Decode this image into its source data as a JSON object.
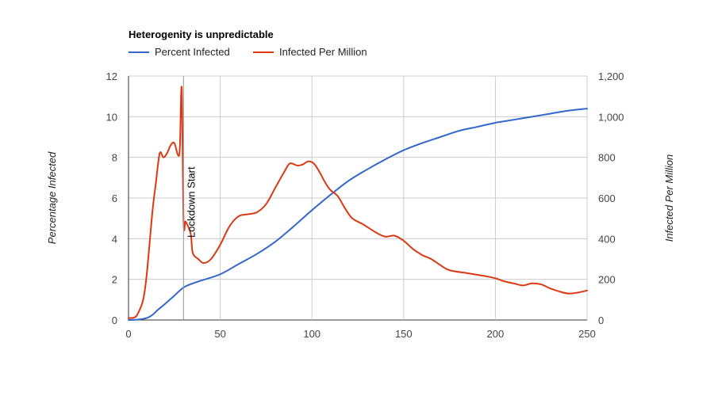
{
  "chart_data": {
    "type": "line",
    "title": "Heterogenity is unpredictable",
    "xlabel": "",
    "ylabel_left": "Percentage Infected",
    "ylabel_right": "Infected Per Million",
    "legend_position": "top-left",
    "grid": true,
    "xlim": [
      0,
      250
    ],
    "ylim_left": [
      0,
      12
    ],
    "ylim_right": [
      0,
      1200
    ],
    "x_ticks": [
      "0",
      "50",
      "100",
      "150",
      "200",
      "250"
    ],
    "y_left_ticks": [
      "0",
      "2",
      "4",
      "6",
      "8",
      "10",
      "12"
    ],
    "y_right_ticks": [
      "0",
      "200",
      "400",
      "600",
      "800",
      "1,000",
      "1,200"
    ],
    "annotation": {
      "x": 30,
      "label": "Lockdown Start"
    },
    "series": [
      {
        "name": "Percent Infected",
        "axis": "left",
        "color": "#3366cc",
        "points": [
          [
            0,
            0
          ],
          [
            5,
            0.02
          ],
          [
            10,
            0.1
          ],
          [
            13,
            0.25
          ],
          [
            16,
            0.5
          ],
          [
            20,
            0.8
          ],
          [
            25,
            1.2
          ],
          [
            30,
            1.6
          ],
          [
            35,
            1.8
          ],
          [
            40,
            1.95
          ],
          [
            50,
            2.25
          ],
          [
            60,
            2.75
          ],
          [
            70,
            3.25
          ],
          [
            80,
            3.85
          ],
          [
            90,
            4.6
          ],
          [
            100,
            5.4
          ],
          [
            110,
            6.15
          ],
          [
            120,
            6.85
          ],
          [
            130,
            7.4
          ],
          [
            140,
            7.9
          ],
          [
            150,
            8.35
          ],
          [
            160,
            8.7
          ],
          [
            170,
            9.0
          ],
          [
            180,
            9.3
          ],
          [
            190,
            9.5
          ],
          [
            200,
            9.7
          ],
          [
            210,
            9.85
          ],
          [
            220,
            10.0
          ],
          [
            230,
            10.15
          ],
          [
            240,
            10.3
          ],
          [
            250,
            10.4
          ]
        ]
      },
      {
        "name": "Infected Per Million",
        "axis": "right",
        "color": "#dc3912",
        "points": [
          [
            0,
            10
          ],
          [
            3,
            12
          ],
          [
            5,
            30
          ],
          [
            8,
            100
          ],
          [
            10,
            230
          ],
          [
            13,
            530
          ],
          [
            15,
            680
          ],
          [
            17,
            820
          ],
          [
            19,
            800
          ],
          [
            21,
            820
          ],
          [
            23,
            860
          ],
          [
            25,
            870
          ],
          [
            27,
            810
          ],
          [
            28,
            850
          ],
          [
            29,
            1140
          ],
          [
            30,
            490
          ],
          [
            31,
            485
          ],
          [
            32,
            470
          ],
          [
            34,
            420
          ],
          [
            35,
            330
          ],
          [
            38,
            300
          ],
          [
            41,
            280
          ],
          [
            45,
            300
          ],
          [
            50,
            370
          ],
          [
            55,
            460
          ],
          [
            60,
            510
          ],
          [
            65,
            520
          ],
          [
            70,
            530
          ],
          [
            75,
            570
          ],
          [
            80,
            650
          ],
          [
            85,
            730
          ],
          [
            88,
            770
          ],
          [
            92,
            760
          ],
          [
            95,
            765
          ],
          [
            98,
            780
          ],
          [
            101,
            770
          ],
          [
            104,
            730
          ],
          [
            107,
            680
          ],
          [
            110,
            640
          ],
          [
            114,
            610
          ],
          [
            118,
            550
          ],
          [
            122,
            500
          ],
          [
            128,
            470
          ],
          [
            135,
            430
          ],
          [
            140,
            410
          ],
          [
            145,
            415
          ],
          [
            150,
            390
          ],
          [
            155,
            350
          ],
          [
            160,
            320
          ],
          [
            165,
            300
          ],
          [
            170,
            270
          ],
          [
            175,
            245
          ],
          [
            185,
            230
          ],
          [
            195,
            215
          ],
          [
            200,
            205
          ],
          [
            205,
            190
          ],
          [
            210,
            180
          ],
          [
            215,
            170
          ],
          [
            220,
            180
          ],
          [
            225,
            175
          ],
          [
            230,
            155
          ],
          [
            235,
            140
          ],
          [
            240,
            130
          ],
          [
            245,
            135
          ],
          [
            250,
            145
          ]
        ]
      }
    ]
  }
}
